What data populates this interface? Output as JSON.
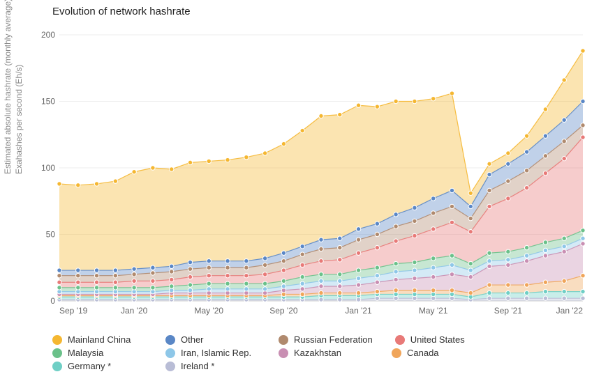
{
  "chart": {
    "type": "stacked-area",
    "title": "Evolution of network hashrate",
    "yaxis_label_line1": "Estimated absolute hashrate (monthly average)",
    "yaxis_label_line2": "Exahashes per second (Eh/s)",
    "background_color": "#ffffff",
    "grid_color": "#eeeeee",
    "tick_color": "#666666",
    "title_fontsize": 15,
    "tick_fontsize": 12,
    "label_fontsize": 12,
    "marker_radius": 3.2,
    "marker_stroke": "#ffffff",
    "marker_stroke_width": 1,
    "area_opacity": 0.38,
    "ylim": [
      0,
      200
    ],
    "ytick_step": 50,
    "x_labels": [
      "Sep '19",
      "",
      "",
      "",
      "Jan '20",
      "",
      "",
      "",
      "May '20",
      "",
      "",
      "",
      "Sep '20",
      "",
      "",
      "",
      "Jan '21",
      "",
      "",
      "",
      "May '21",
      "",
      "",
      "",
      "Sep '21",
      "",
      "",
      "",
      "Jan '22"
    ],
    "x_tick_every": 4,
    "series": [
      {
        "name": "Ireland *",
        "color": "#b9bdd6",
        "values": [
          1,
          1,
          1,
          1,
          1,
          1,
          1,
          1,
          1,
          1,
          1,
          1,
          1,
          1,
          1,
          1,
          1,
          2,
          2,
          2,
          2,
          2,
          1,
          2,
          2,
          2,
          2,
          2,
          2
        ]
      },
      {
        "name": "Germany *",
        "color": "#6fcfc5",
        "values": [
          2,
          2,
          2,
          2,
          2,
          2,
          2,
          2,
          2,
          2,
          2,
          2,
          2,
          2,
          3,
          3,
          3,
          3,
          3,
          3,
          3,
          3,
          2,
          4,
          4,
          4,
          5,
          5,
          5
        ]
      },
      {
        "name": "Canada",
        "color": "#f0a55a",
        "values": [
          1,
          1,
          1,
          1,
          1,
          1,
          1,
          1,
          1,
          1,
          1,
          1,
          2,
          2,
          2,
          2,
          2,
          2,
          3,
          3,
          3,
          3,
          3,
          6,
          6,
          6,
          7,
          8,
          12
        ]
      },
      {
        "name": "Kazakhstan",
        "color": "#c98fb3",
        "values": [
          1,
          1,
          1,
          1,
          1,
          1,
          2,
          2,
          2,
          2,
          2,
          2,
          3,
          4,
          5,
          5,
          6,
          7,
          8,
          9,
          10,
          12,
          12,
          14,
          15,
          18,
          20,
          22,
          24
        ]
      },
      {
        "name": "Iran, Islamic Rep.",
        "color": "#8ec7e8",
        "values": [
          2,
          2,
          2,
          2,
          2,
          2,
          2,
          2,
          3,
          3,
          3,
          3,
          3,
          4,
          4,
          4,
          5,
          5,
          6,
          6,
          7,
          7,
          5,
          4,
          4,
          4,
          4,
          4,
          4
        ]
      },
      {
        "name": "Malaysia",
        "color": "#6bc18a",
        "values": [
          3,
          3,
          3,
          3,
          3,
          3,
          3,
          4,
          4,
          4,
          4,
          4,
          4,
          5,
          5,
          5,
          6,
          6,
          6,
          6,
          7,
          7,
          5,
          6,
          6,
          6,
          6,
          6,
          6
        ]
      },
      {
        "name": "United States",
        "color": "#e87a78",
        "values": [
          4,
          4,
          4,
          4,
          5,
          5,
          5,
          6,
          6,
          6,
          6,
          7,
          8,
          9,
          10,
          11,
          13,
          15,
          17,
          20,
          22,
          25,
          24,
          35,
          40,
          45,
          52,
          60,
          70
        ]
      },
      {
        "name": "Russian Federation",
        "color": "#b08a6e",
        "values": [
          5,
          5,
          5,
          5,
          5,
          6,
          6,
          6,
          6,
          6,
          6,
          7,
          7,
          8,
          9,
          9,
          10,
          10,
          11,
          11,
          12,
          12,
          10,
          12,
          13,
          13,
          13,
          13,
          9
        ]
      },
      {
        "name": "Other",
        "color": "#5a87c6",
        "values": [
          4,
          4,
          4,
          4,
          4,
          4,
          4,
          5,
          5,
          5,
          5,
          5,
          6,
          6,
          7,
          7,
          8,
          8,
          9,
          10,
          11,
          12,
          9,
          12,
          13,
          14,
          15,
          16,
          18
        ]
      },
      {
        "name": "Mainland China",
        "color": "#f5b731",
        "values": [
          65,
          64,
          65,
          67,
          73,
          75,
          73,
          75,
          75,
          76,
          78,
          79,
          82,
          87,
          93,
          93,
          93,
          88,
          85,
          80,
          75,
          73,
          10,
          8,
          8,
          12,
          20,
          30,
          38
        ]
      }
    ],
    "legend_order": [
      "Mainland China",
      "Other",
      "Russian Federation",
      "United States",
      "Malaysia",
      "Iran, Islamic Rep.",
      "Kazakhstan",
      "Canada",
      "Germany *",
      "Ireland *"
    ]
  }
}
